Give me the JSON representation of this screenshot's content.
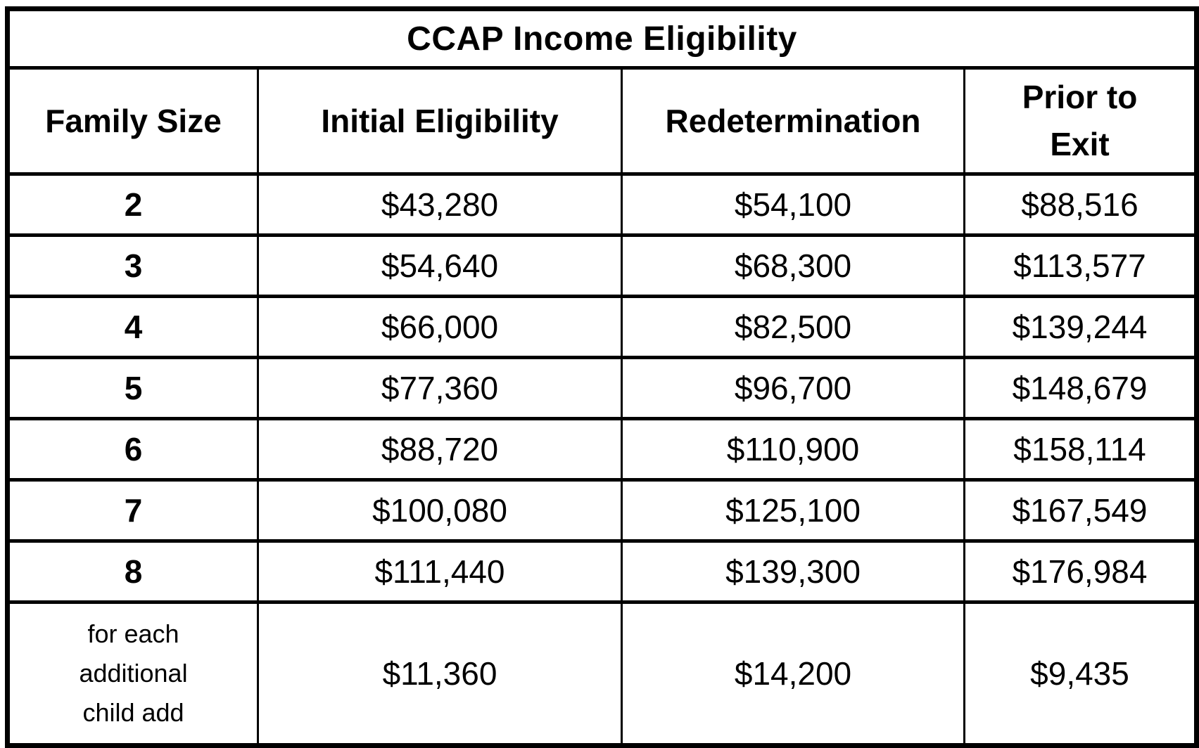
{
  "page": {
    "background_color": "#ffffff",
    "border_color": "#000000",
    "text_color": "#000000"
  },
  "table": {
    "title": "CCAP Income Eligibility",
    "columns": [
      {
        "key": "family_size",
        "label": "Family Size"
      },
      {
        "key": "initial_eligibility",
        "label": "Initial Eligibility"
      },
      {
        "key": "redetermination",
        "label": "Redetermination"
      },
      {
        "key": "prior_to_exit",
        "label": "Prior to Exit"
      }
    ],
    "rows": [
      {
        "family_size": "2",
        "initial_eligibility": "$43,280",
        "redetermination": "$54,100",
        "prior_to_exit": "$88,516"
      },
      {
        "family_size": "3",
        "initial_eligibility": "$54,640",
        "redetermination": "$68,300",
        "prior_to_exit": "$113,577"
      },
      {
        "family_size": "4",
        "initial_eligibility": "$66,000",
        "redetermination": "$82,500",
        "prior_to_exit": "$139,244"
      },
      {
        "family_size": "5",
        "initial_eligibility": "$77,360",
        "redetermination": "$96,700",
        "prior_to_exit": "$148,679"
      },
      {
        "family_size": "6",
        "initial_eligibility": "$88,720",
        "redetermination": "$110,900",
        "prior_to_exit": "$158,114"
      },
      {
        "family_size": "7",
        "initial_eligibility": "$100,080",
        "redetermination": "$125,100",
        "prior_to_exit": "$167,549"
      },
      {
        "family_size": "8",
        "initial_eligibility": "$111,440",
        "redetermination": "$139,300",
        "prior_to_exit": "$176,984"
      },
      {
        "family_size": "for each additional child add",
        "initial_eligibility": "$11,360",
        "redetermination": "$14,200",
        "prior_to_exit": "$9,435"
      }
    ]
  }
}
